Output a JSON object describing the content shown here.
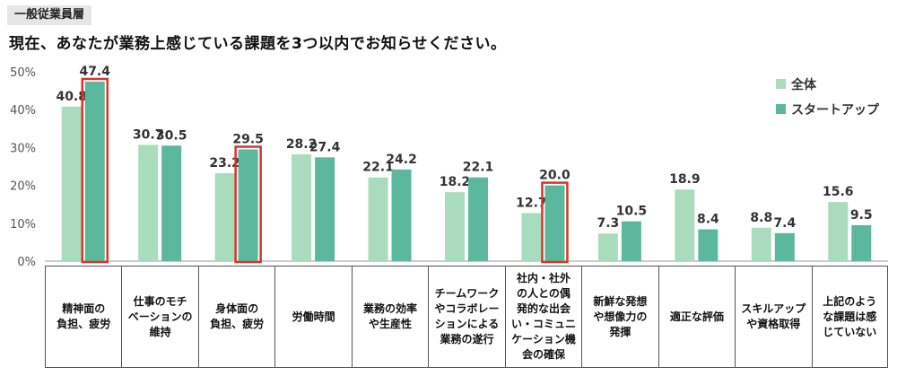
{
  "header": {
    "tag": "一般従業員層",
    "question": "現在、あなたが業務上感じている課題を3つ以内でお知らせください。"
  },
  "chart_data": {
    "type": "bar",
    "categories": [
      "精神面の\n負担、疲労",
      "仕事のモチ\nベーションの\n維持",
      "身体面の\n負担、疲労",
      "労働時間",
      "業務の効率\nや生産性",
      "チームワーク\nやコラボレー\nションによる\n業務の遂行",
      "社内・社外\nの人との偶\n発的な出会\nい・コミュニ\nケーション機\n会の確保",
      "新鮮な発想\nや想像力の\n発揮",
      "適正な評価",
      "スキルアップ\nや資格取得",
      "上記のよう\nな課題は感\nじていない"
    ],
    "series": [
      {
        "name": "全体",
        "color": "#a8dcbc",
        "values": [
          40.8,
          30.7,
          23.2,
          28.2,
          22.1,
          18.2,
          12.7,
          7.3,
          18.9,
          8.8,
          15.6
        ]
      },
      {
        "name": "スタートアップ",
        "color": "#5cb89c",
        "values": [
          47.4,
          30.5,
          29.5,
          27.4,
          24.2,
          22.1,
          20.0,
          10.5,
          8.4,
          7.4,
          9.5
        ]
      }
    ],
    "value_labels": {
      "全体": [
        "40.8",
        "30.7",
        "23.2",
        "28.2",
        "22.1",
        "18.2",
        "12.7",
        "7.3",
        "18.9",
        "8.8",
        "15.6"
      ],
      "スタートアップ": [
        "47.4",
        "30.5",
        "29.5",
        "27.4",
        "24.2",
        "22.1",
        "20.0",
        "10.5",
        "8.4",
        "7.4",
        "9.5"
      ]
    },
    "y_ticks": [
      "0%",
      "10%",
      "20%",
      "30%",
      "40%",
      "50%"
    ],
    "ylim": [
      0,
      50
    ],
    "highlighted": [
      {
        "series": "スタートアップ",
        "category_index": 0,
        "color": "#d9342b"
      },
      {
        "series": "スタートアップ",
        "category_index": 2,
        "color": "#d9342b"
      },
      {
        "series": "スタートアップ",
        "category_index": 6,
        "color": "#d9342b"
      }
    ],
    "legend_position": "top-right",
    "grid": false
  }
}
